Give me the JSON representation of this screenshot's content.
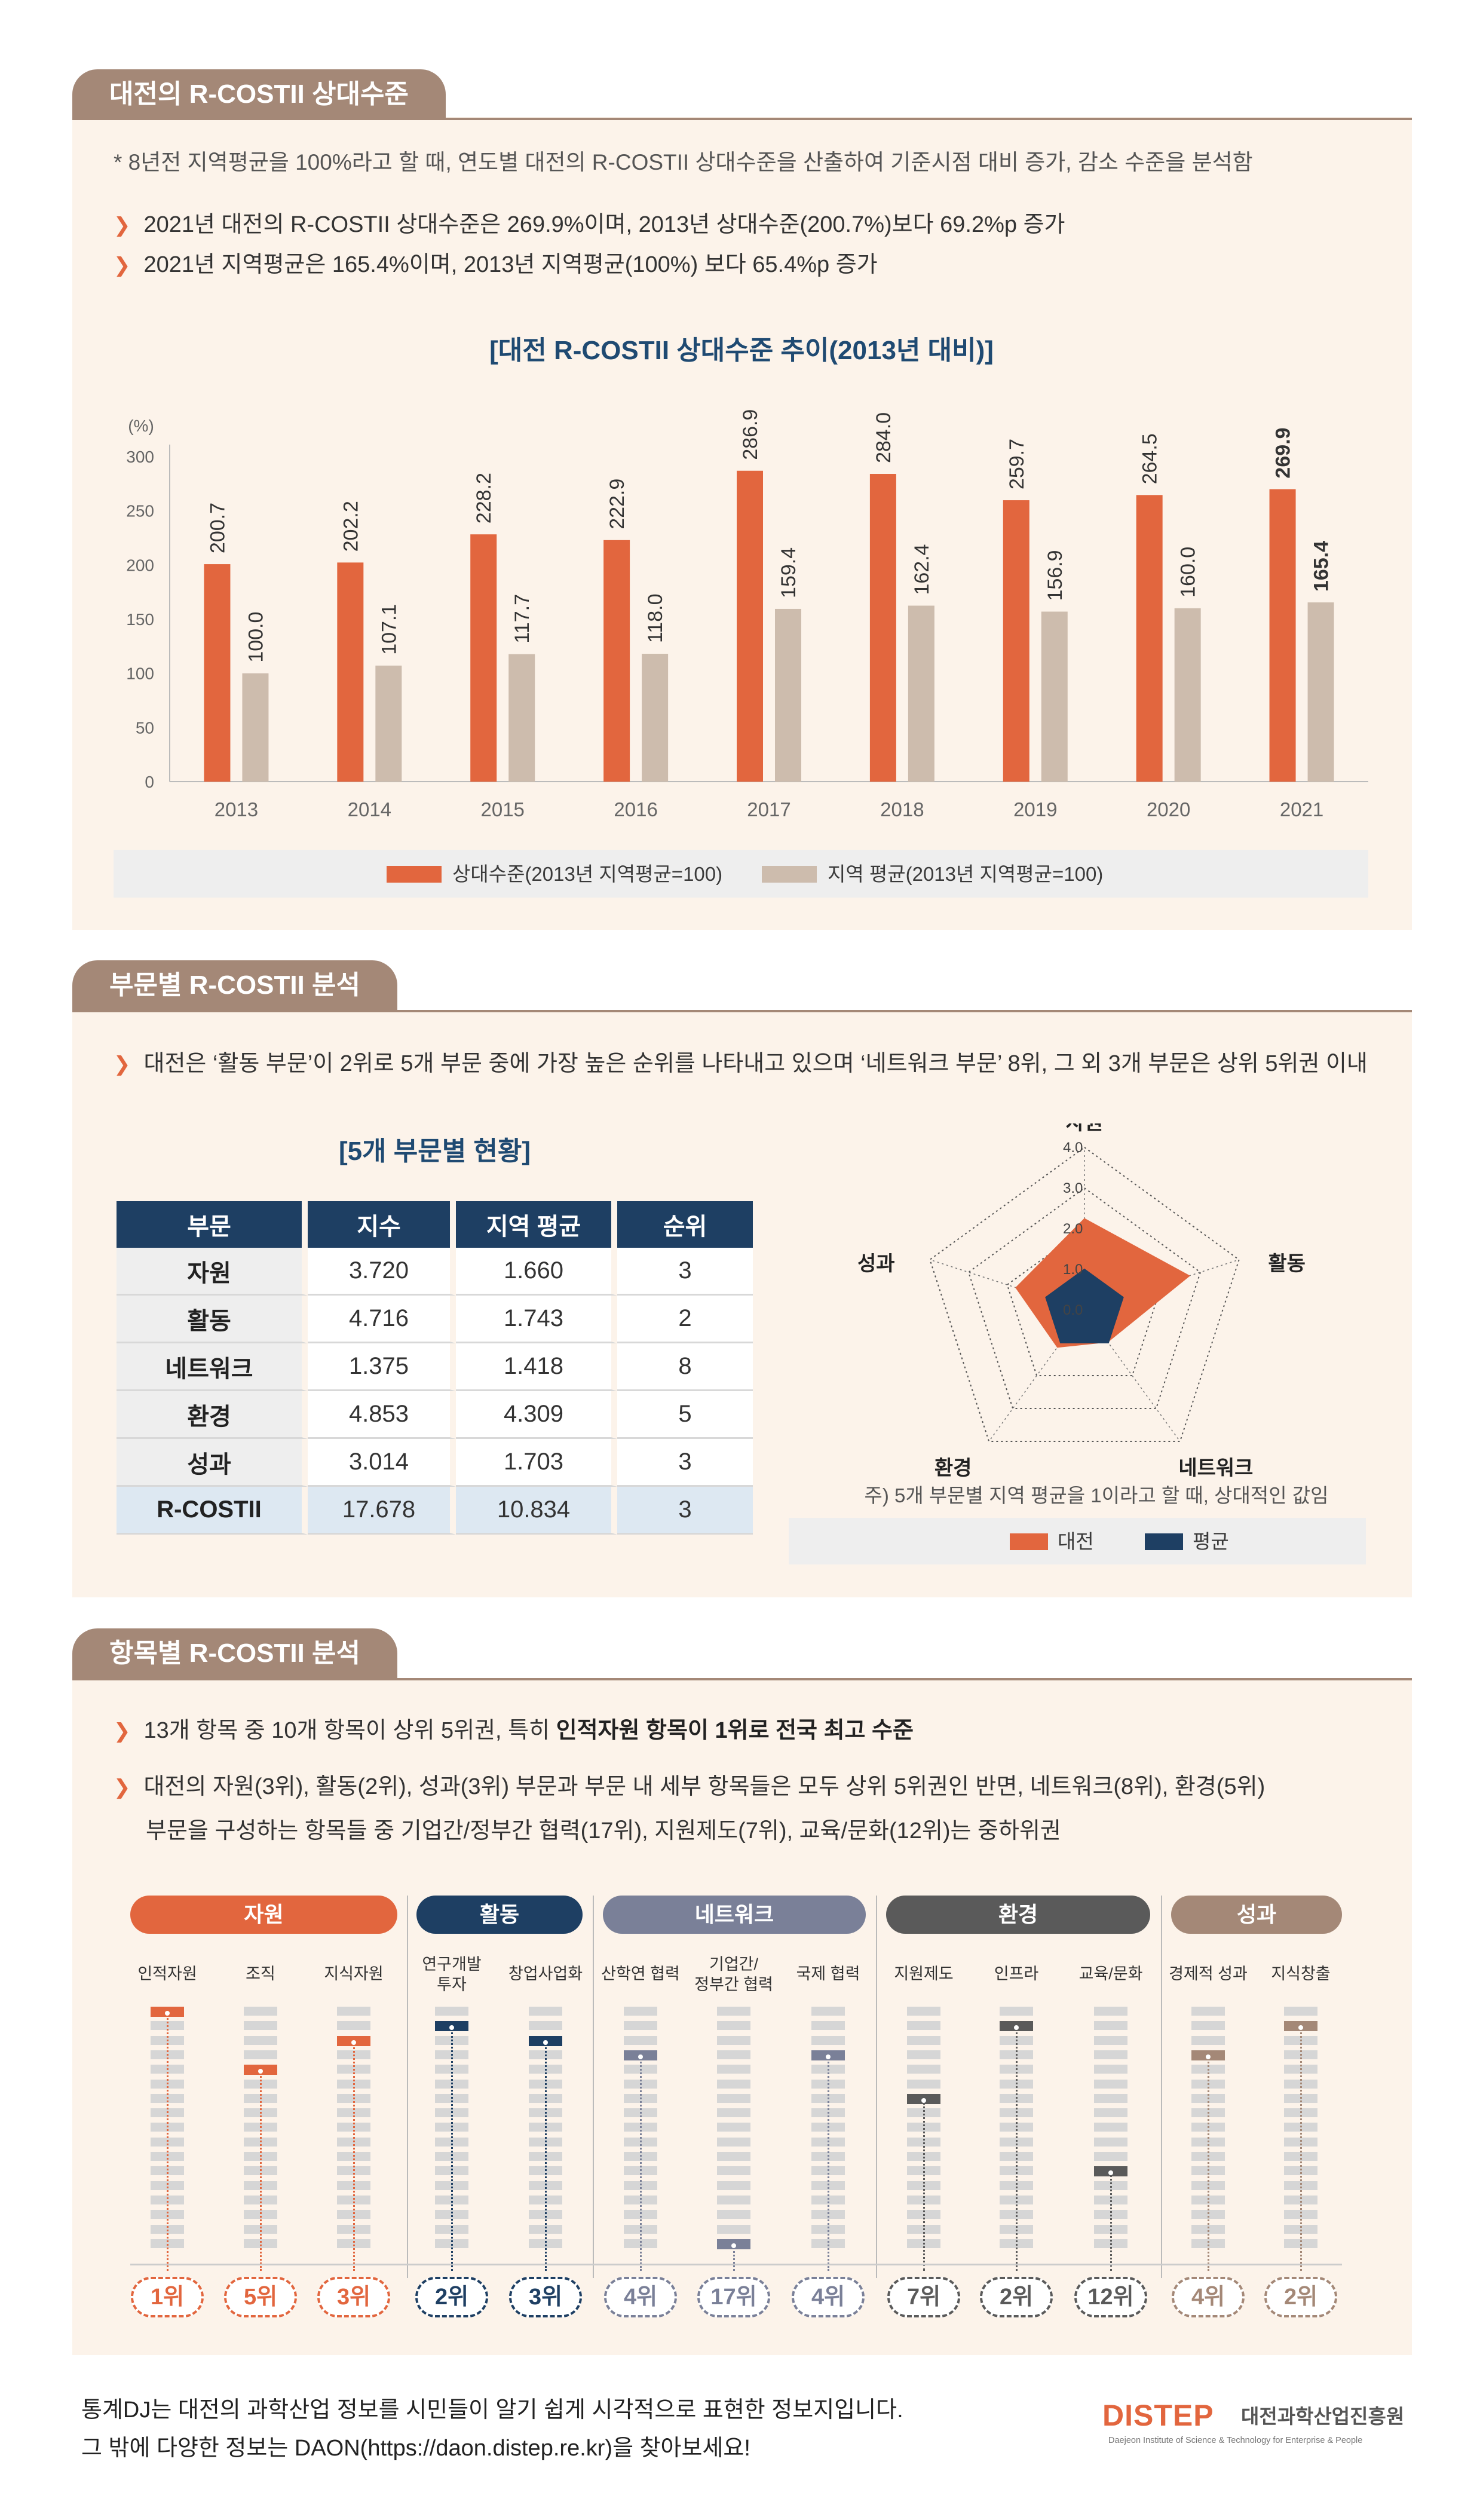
{
  "section1": {
    "tab": "대전의 R-COSTII 상대수준",
    "note": "* 8년전 지역평균을 100%라고 할 때, 연도별 대전의 R-COSTII 상대수준을 산출하여 기준시점 대비 증가, 감소 수준을 분석함",
    "bullets": [
      "2021년 대전의 R-COSTII 상대수준은 269.9%이며, 2013년 상대수준(200.7%)보다 69.2%p 증가",
      "2021년 지역평균은 165.4%이며, 2013년 지역평균(100%) 보다 65.4%p 증가"
    ]
  },
  "chart_data": {
    "type": "bar",
    "title": "[대전 R-COSTII 상대수준 추이(2013년 대비)]",
    "ylabel": "(%)",
    "ylim": [
      0,
      300
    ],
    "yticks": [
      0,
      50,
      100,
      150,
      200,
      250,
      300
    ],
    "categories": [
      "2013",
      "2014",
      "2015",
      "2016",
      "2017",
      "2018",
      "2019",
      "2020",
      "2021"
    ],
    "series": [
      {
        "name": "상대수준(2013년 지역평균=100)",
        "color": "#e2663e",
        "values": [
          200.7,
          202.2,
          228.2,
          222.9,
          286.9,
          284.0,
          259.7,
          264.5,
          269.9
        ],
        "labels": [
          "200.7",
          "202.2",
          "228.2",
          "222.9",
          "286.9",
          "284.0",
          "259.7",
          "264.5",
          "269.9"
        ]
      },
      {
        "name": "지역 평균(2013년 지역평균=100)",
        "color": "#cdbcad",
        "values": [
          100.0,
          107.1,
          117.7,
          118.0,
          159.4,
          162.4,
          156.9,
          160.0,
          165.4
        ],
        "labels": [
          "100.0",
          "107.1",
          "117.7",
          "118.0",
          "159.4",
          "162.4",
          "156.9",
          "160.0",
          "165.4"
        ]
      }
    ],
    "legend_position": "bottom"
  },
  "section2": {
    "tab": "부문별 R-COSTII 분석",
    "bullet": "대전은 ‘활동 부문’이 2위로 5개 부문 중에 가장 높은 순위를 나타내고 있으며 ‘네트워크 부문’ 8위, 그 외 3개 부문은 상위 5위권 이내",
    "table_title": "[5개 부문별 현황]",
    "table_headers": [
      "부문",
      "지수",
      "지역 평균",
      "순위"
    ],
    "table_rows": [
      [
        "자원",
        "3.720",
        "1.660",
        "3"
      ],
      [
        "활동",
        "4.716",
        "1.743",
        "2"
      ],
      [
        "네트워크",
        "1.375",
        "1.418",
        "8"
      ],
      [
        "환경",
        "4.853",
        "4.309",
        "5"
      ],
      [
        "성과",
        "3.014",
        "1.703",
        "3"
      ],
      [
        "R-COSTII",
        "17.678",
        "10.834",
        "3"
      ]
    ],
    "radar": {
      "axes": [
        "자원",
        "활동",
        "네트워크",
        "환경",
        "성과"
      ],
      "ticks": [
        "0.0",
        "1.0",
        "2.0",
        "3.0",
        "4.0"
      ],
      "max": 4.0,
      "daejeon": [
        2.24,
        2.71,
        0.97,
        1.13,
        1.77
      ],
      "average": [
        1.0,
        1.0,
        1.0,
        1.0,
        1.0
      ],
      "note": "주) 5개 부문별 지역 평균을 1이라고 할 때, 상대적인 값임",
      "legend": [
        "대전",
        "평균"
      ],
      "colors": {
        "daejeon": "#e2663e",
        "average": "#1e3f63"
      }
    }
  },
  "section3": {
    "tab": "항목별 R-COSTII 분석",
    "bullet1_plain": "13개 항목 중 10개 항목이 상위 5위권, 특히 ",
    "bullet1_bold": "인적자원 항목이 1위로 전국 최고 수준",
    "bullet2_line1": "대전의 자원(3위), 활동(2위), 성과(3위) 부문과 부문 내 세부 항목들은 모두 상위 5위권인 반면, 네트워크(8위), 환경(5위)",
    "bullet2_line2": "부문을 구성하는 항목들 중 기업간/정부간 협력(17위), 지원제도(7위), 교육/문화(12위)는 중하위권",
    "categories": [
      {
        "name": "자원",
        "color": "#e2663e"
      },
      {
        "name": "활동",
        "color": "#1e3f63"
      },
      {
        "name": "네트워크",
        "color": "#7a8098"
      },
      {
        "name": "환경",
        "color": "#5a5a5a"
      },
      {
        "name": "성과",
        "color": "#a48877"
      }
    ],
    "items": [
      {
        "name": [
          "인적자원"
        ],
        "rank": 1,
        "label": "1위",
        "cat": 0
      },
      {
        "name": [
          "조직"
        ],
        "rank": 5,
        "label": "5위",
        "cat": 0
      },
      {
        "name": [
          "지식자원"
        ],
        "rank": 3,
        "label": "3위",
        "cat": 0
      },
      {
        "name": [
          "연구개발",
          "투자"
        ],
        "rank": 2,
        "label": "2위",
        "cat": 1
      },
      {
        "name": [
          "창업사업화"
        ],
        "rank": 3,
        "label": "3위",
        "cat": 1
      },
      {
        "name": [
          "산학연 협력"
        ],
        "rank": 4,
        "label": "4위",
        "cat": 2
      },
      {
        "name": [
          "기업간/",
          "정부간 협력"
        ],
        "rank": 17,
        "label": "17위",
        "cat": 2
      },
      {
        "name": [
          "국제 협력"
        ],
        "rank": 4,
        "label": "4위",
        "cat": 2
      },
      {
        "name": [
          "지원제도"
        ],
        "rank": 7,
        "label": "7위",
        "cat": 3
      },
      {
        "name": [
          "인프라"
        ],
        "rank": 2,
        "label": "2위",
        "cat": 3
      },
      {
        "name": [
          "교육/문화"
        ],
        "rank": 12,
        "label": "12위",
        "cat": 3
      },
      {
        "name": [
          "경제적 성과"
        ],
        "rank": 4,
        "label": "4위",
        "cat": 4
      },
      {
        "name": [
          "지식창출"
        ],
        "rank": 2,
        "label": "2위",
        "cat": 4
      }
    ],
    "rank_total": 17
  },
  "footer": {
    "line1": "통계DJ는 대전의 과학산업 정보를 시민들이 알기 쉽게 시각적으로 표현한 정보지입니다.",
    "line2": "그 밖에 다양한 정보는 DAON(https://daon.distep.re.kr)을 찾아보세요!",
    "logo_main": "DISTEP",
    "logo_kr": "대전과학산업진흥원",
    "logo_en": "Daejeon Institute of Science & Technology for Enterprise & People"
  }
}
